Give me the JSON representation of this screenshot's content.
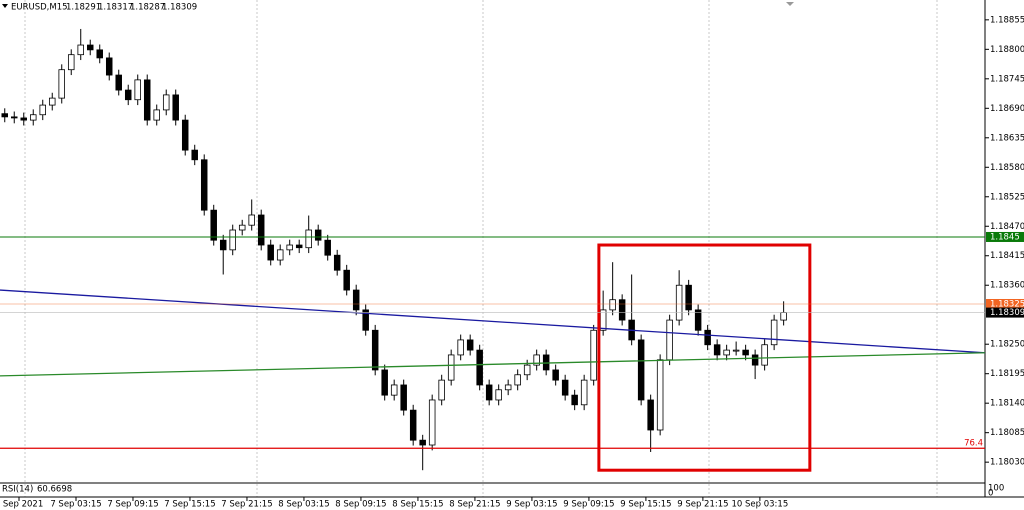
{
  "chart_data": {
    "type": "candlestick",
    "symbol": "EURUSD,M15",
    "ohlc": [
      1.18291,
      1.18317,
      1.18287,
      1.18309
    ],
    "xlim": [
      0,
      103.7
    ],
    "ylim": [
      1.17993,
      1.18892
    ],
    "yticks": [
      1.18855,
      {
        "value": 1.188,
        "label": "1.18800"
      },
      1.18745,
      {
        "value": 1.1869,
        "label": "1.18690"
      },
      1.18635,
      {
        "value": 1.1858,
        "label": "1.18580"
      },
      1.18525,
      {
        "value": 1.1847,
        "label": "1.18470"
      },
      1.18415,
      {
        "value": 1.1836,
        "label": "1.18360"
      },
      {
        "value": 1.1825,
        "label": "1.18250"
      },
      1.18195,
      {
        "value": 1.1814,
        "label": "1.18140"
      },
      1.18085,
      {
        "value": 1.1803,
        "label": "1.18030"
      }
    ],
    "xticks": [
      {
        "value": 2,
        "label": "6 Sep 2021"
      },
      {
        "value": 8,
        "label": "7 Sep 03:15"
      },
      {
        "value": 14,
        "label": "7 Sep 09:15"
      },
      {
        "value": 20,
        "label": "7 Sep 15:15"
      },
      {
        "value": 26,
        "label": "7 Sep 21:15"
      },
      {
        "value": 32,
        "label": "8 Sep 03:15"
      },
      {
        "value": 38,
        "label": "8 Sep 09:15"
      },
      {
        "value": 44,
        "label": "8 Sep 15:15"
      },
      {
        "value": 50,
        "label": "8 Sep 21:15"
      },
      {
        "value": 56,
        "label": "9 Sep 03:15"
      },
      {
        "value": 62,
        "label": "9 Sep 09:15"
      },
      {
        "value": 68,
        "label": "9 Sep 15:15"
      },
      {
        "value": 74,
        "label": "9 Sep 21:15"
      },
      {
        "value": 80,
        "label": "10 Sep 03:15"
      }
    ],
    "candles": [
      [
        1.1868,
        1.1869,
        1.18664,
        1.18674
      ],
      [
        1.18674,
        1.18684,
        1.18662,
        1.18672
      ],
      [
        1.18672,
        1.18682,
        1.18658,
        1.18668
      ],
      [
        1.18668,
        1.18688,
        1.18658,
        1.18678
      ],
      [
        1.18678,
        1.18706,
        1.18668,
        1.18696
      ],
      [
        1.18696,
        1.18719,
        1.18686,
        1.18709
      ],
      [
        1.18709,
        1.18772,
        1.18699,
        1.18762
      ],
      [
        1.18762,
        1.188,
        1.18752,
        1.1879
      ],
      [
        1.1879,
        1.18838,
        1.1878,
        1.18808
      ],
      [
        1.18808,
        1.18818,
        1.18789,
        1.18799
      ],
      [
        1.18799,
        1.18809,
        1.18774,
        1.18784
      ],
      [
        1.18784,
        1.18794,
        1.18742,
        1.18752
      ],
      [
        1.18752,
        1.18762,
        1.18714,
        1.18724
      ],
      [
        1.18724,
        1.18734,
        1.18696,
        1.18706
      ],
      [
        1.18706,
        1.18753,
        1.18696,
        1.18743
      ],
      [
        1.18743,
        1.18753,
        1.18658,
        1.18668
      ],
      [
        1.18668,
        1.18697,
        1.18658,
        1.18687
      ],
      [
        1.18687,
        1.18725,
        1.18677,
        1.18715
      ],
      [
        1.18715,
        1.18725,
        1.18658,
        1.18668
      ],
      [
        1.18668,
        1.18678,
        1.18602,
        1.18612
      ],
      [
        1.18612,
        1.18622,
        1.18584,
        1.18594
      ],
      [
        1.18594,
        1.18604,
        1.1849,
        1.185
      ],
      [
        1.185,
        1.1851,
        1.18434,
        1.18444
      ],
      [
        1.18444,
        1.18454,
        1.1838,
        1.18426
      ],
      [
        1.18426,
        1.18473,
        1.18416,
        1.18463
      ],
      [
        1.18463,
        1.18482,
        1.18453,
        1.18472
      ],
      [
        1.18472,
        1.1852,
        1.18462,
        1.18491
      ],
      [
        1.18491,
        1.18501,
        1.18425,
        1.18435
      ],
      [
        1.18435,
        1.18445,
        1.18397,
        1.18407
      ],
      [
        1.18407,
        1.18436,
        1.18397,
        1.18426
      ],
      [
        1.18426,
        1.18445,
        1.18416,
        1.18435
      ],
      [
        1.18435,
        1.18445,
        1.1842,
        1.1843
      ],
      [
        1.1843,
        1.1849,
        1.1842,
        1.18463
      ],
      [
        1.18463,
        1.18473,
        1.18434,
        1.18444
      ],
      [
        1.18444,
        1.18454,
        1.18406,
        1.18416
      ],
      [
        1.18416,
        1.18426,
        1.18378,
        1.18388
      ],
      [
        1.18388,
        1.18398,
        1.18341,
        1.18351
      ],
      [
        1.18351,
        1.18361,
        1.18304,
        1.18314
      ],
      [
        1.18314,
        1.18324,
        1.18266,
        1.18276
      ],
      [
        1.18276,
        1.18286,
        1.18192,
        1.18202
      ],
      [
        1.18202,
        1.18212,
        1.18145,
        1.18155
      ],
      [
        1.18155,
        1.18184,
        1.18145,
        1.18174
      ],
      [
        1.18174,
        1.18184,
        1.18117,
        1.18127
      ],
      [
        1.18127,
        1.18137,
        1.18061,
        1.18071
      ],
      [
        1.18071,
        1.18081,
        1.18015,
        1.18062
      ],
      [
        1.18062,
        1.18156,
        1.18052,
        1.18146
      ],
      [
        1.18146,
        1.18193,
        1.18136,
        1.18183
      ],
      [
        1.18183,
        1.1824,
        1.18173,
        1.1823
      ],
      [
        1.1823,
        1.18268,
        1.1822,
        1.18258
      ],
      [
        1.18258,
        1.18268,
        1.18229,
        1.18239
      ],
      [
        1.18239,
        1.18249,
        1.18164,
        1.18174
      ],
      [
        1.18174,
        1.18184,
        1.18136,
        1.18146
      ],
      [
        1.18146,
        1.18175,
        1.18136,
        1.18165
      ],
      [
        1.18165,
        1.18184,
        1.18155,
        1.18174
      ],
      [
        1.18174,
        1.18203,
        1.18164,
        1.18193
      ],
      [
        1.18193,
        1.18221,
        1.18183,
        1.18211
      ],
      [
        1.18211,
        1.1824,
        1.18201,
        1.1823
      ],
      [
        1.1823,
        1.1824,
        1.18192,
        1.18202
      ],
      [
        1.18202,
        1.18212,
        1.18173,
        1.18183
      ],
      [
        1.18183,
        1.18193,
        1.18145,
        1.18155
      ],
      [
        1.18155,
        1.18165,
        1.18127,
        1.18137
      ],
      [
        1.18137,
        1.18193,
        1.18127,
        1.18183
      ],
      [
        1.18183,
        1.18286,
        1.18173,
        1.18276
      ],
      [
        1.18276,
        1.1835,
        1.18266,
        1.18314
      ],
      [
        1.18314,
        1.18403,
        1.18304,
        1.18333
      ],
      [
        1.18333,
        1.18343,
        1.18285,
        1.18295
      ],
      [
        1.18295,
        1.1838,
        1.18248,
        1.18258
      ],
      [
        1.18258,
        1.18268,
        1.18136,
        1.18146
      ],
      [
        1.18146,
        1.18156,
        1.18049,
        1.1809
      ],
      [
        1.1809,
        1.18231,
        1.1808,
        1.18221
      ],
      [
        1.18221,
        1.18305,
        1.18211,
        1.18295
      ],
      [
        1.18295,
        1.18388,
        1.18285,
        1.1836
      ],
      [
        1.1836,
        1.1837,
        1.18304,
        1.18314
      ],
      [
        1.18314,
        1.18324,
        1.18266,
        1.18276
      ],
      [
        1.18276,
        1.18286,
        1.18239,
        1.18249
      ],
      [
        1.18249,
        1.18259,
        1.1822,
        1.1823
      ],
      [
        1.1823,
        1.18249,
        1.1822,
        1.18239
      ],
      [
        1.18239,
        1.18255,
        1.18229,
        1.18239
      ],
      [
        1.18239,
        1.18249,
        1.1822,
        1.1823
      ],
      [
        1.1823,
        1.1824,
        1.18185,
        1.18211
      ],
      [
        1.18211,
        1.18259,
        1.18201,
        1.18249
      ],
      [
        1.18249,
        1.18305,
        1.18239,
        1.18295
      ],
      [
        1.18295,
        1.1833,
        1.18285,
        1.18309
      ]
    ],
    "hlines": [
      {
        "price": 1.1845,
        "color": "#0a7a0a",
        "box": true
      },
      {
        "price": 1.18325,
        "color": "#f26522",
        "box": true
      },
      {
        "price": 1.18056,
        "color": "#e00000",
        "level": 76.4
      }
    ],
    "trendlines": [
      {
        "color": "#1a1aa0",
        "from": [
          0,
          1.18351
        ],
        "to": [
          103.7,
          1.18234
        ]
      },
      {
        "color": "#2a8a2a",
        "from": [
          0,
          1.18191
        ],
        "to": [
          103.7,
          1.18234
        ]
      }
    ],
    "rectangle": {
      "color": "#e00000",
      "x": [
        63.05,
        85.26
      ],
      "y": [
        1.18435,
        1.18015
      ]
    },
    "rsi": {
      "label": "RSI(14)",
      "value": 60.6698,
      "yticks": [
        100,
        0
      ]
    }
  }
}
